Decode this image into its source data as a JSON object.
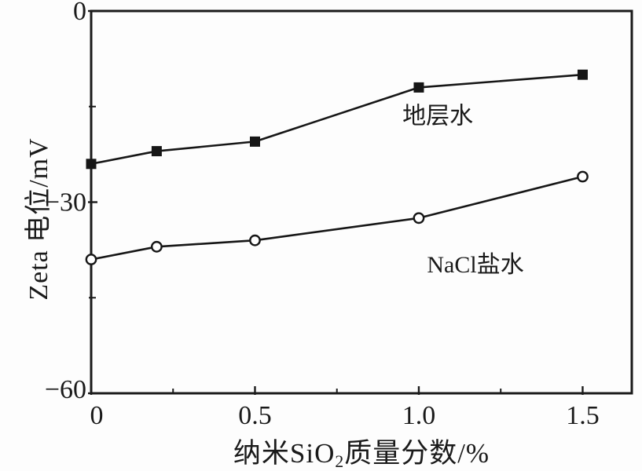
{
  "chart_data": {
    "type": "line",
    "title": "",
    "xlabel": "纳米SiO₂质量分数/%",
    "xlabel_parts": {
      "pre": "纳米SiO",
      "sub": "2",
      "post": "质量分数/%"
    },
    "ylabel": "Zeta 电位/mV",
    "xlim": [
      0,
      1.65
    ],
    "ylim": [
      -60,
      0
    ],
    "grid": false,
    "legend": "inline-labels",
    "axis_color": "#1a1a1a",
    "background": "#fdfdfd",
    "x_ticks": {
      "major": [
        {
          "value": 0,
          "label": "0"
        },
        {
          "value": 0.5,
          "label": "0.5"
        },
        {
          "value": 1.0,
          "label": "1.0"
        },
        {
          "value": 1.5,
          "label": "1.5"
        }
      ],
      "minor": [
        0.25,
        0.75,
        1.25
      ]
    },
    "y_ticks": {
      "major": [
        {
          "value": 0,
          "label": "0"
        },
        {
          "value": -30,
          "label": "−30"
        },
        {
          "value": -60,
          "label": "−60"
        }
      ],
      "minor": [
        -15,
        -45
      ]
    },
    "x": [
      0,
      0.2,
      0.5,
      1.0,
      1.5
    ],
    "series": [
      {
        "name": "地层水",
        "marker": "filled-square",
        "color": "#161616",
        "values": [
          -24,
          -22,
          -20.5,
          -12,
          -10
        ],
        "label_anchor": {
          "x": 0.95,
          "y": -16.3
        }
      },
      {
        "name": "NaCl盐水",
        "marker": "open-circle",
        "color": "#161616",
        "values": [
          -39,
          -37,
          -36,
          -32.5,
          -26
        ],
        "label_anchor": {
          "x": 1.025,
          "y": -39.7
        }
      }
    ]
  }
}
